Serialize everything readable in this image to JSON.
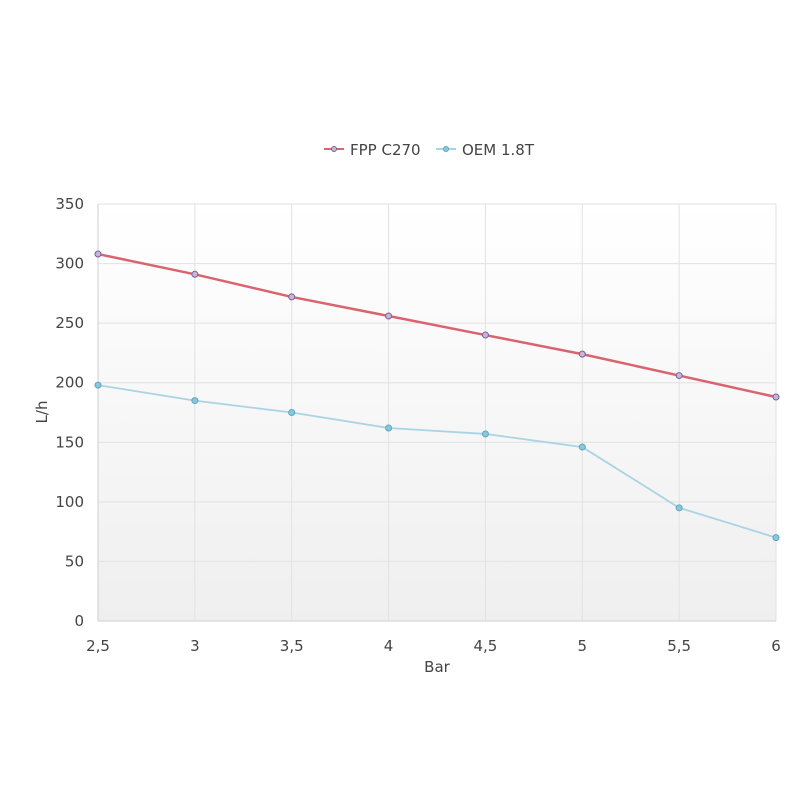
{
  "chart_data": {
    "type": "line",
    "xlabel": "Bar",
    "ylabel": "L/h",
    "x": [
      "2,5",
      "3",
      "3,5",
      "4",
      "4,5",
      "5",
      "5,5",
      "6"
    ],
    "x_values": [
      2.5,
      3,
      3.5,
      4,
      4.5,
      5,
      5.5,
      6
    ],
    "xlim": [
      2.5,
      6
    ],
    "ylim": [
      0,
      350
    ],
    "y_ticks": [
      0,
      50,
      100,
      150,
      200,
      250,
      300,
      350
    ],
    "grid": true,
    "legend_position": "top-center",
    "series": [
      {
        "name": "FPP C270",
        "color": "#d9646f",
        "values": [
          308,
          291,
          272,
          256,
          240,
          224,
          206,
          188
        ]
      },
      {
        "name": "OEM 1.8T",
        "color": "#a9d4e4",
        "values": [
          198,
          185,
          175,
          162,
          157,
          146,
          95,
          70
        ]
      }
    ]
  }
}
